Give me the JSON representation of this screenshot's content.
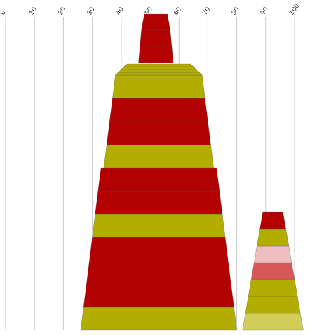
{
  "chart_data": {
    "type": "bar",
    "orientation": "horizontal",
    "style": "stacked trapezoid layers",
    "title": "",
    "xlabel": "",
    "ylabel": "",
    "xlim": [
      0,
      100
    ],
    "x_ticks": [
      0,
      10,
      20,
      30,
      40,
      50,
      60,
      70,
      80,
      90,
      100
    ],
    "tick_label_rotation": "diagonal",
    "grid": "vertical",
    "legend": "none",
    "colors": {
      "red": "#b30000",
      "olive": "#b3ad00",
      "light_olive": "#d2cc58",
      "pink": "#efbfbf",
      "salmon": "#d65858",
      "gridline": "#c8c8c8"
    },
    "shapes": [
      {
        "name": "large-stack",
        "layers": [
          {
            "bottom_start": 26,
            "bottom_end": 80,
            "top_start": 27,
            "top_end": 79,
            "color": "olive"
          },
          {
            "bottom_start": 27,
            "bottom_end": 79,
            "top_start": 28,
            "top_end": 78,
            "color": "red"
          },
          {
            "bottom_start": 28,
            "bottom_end": 78,
            "top_start": 29,
            "top_end": 77,
            "color": "red"
          },
          {
            "bottom_start": 29,
            "bottom_end": 77,
            "top_start": 30,
            "top_end": 76,
            "color": "red"
          },
          {
            "bottom_start": 30,
            "bottom_end": 76,
            "top_start": 31,
            "top_end": 75,
            "color": "olive"
          },
          {
            "bottom_start": 31,
            "bottom_end": 75,
            "top_start": 32,
            "top_end": 74,
            "color": "red"
          },
          {
            "bottom_start": 32,
            "bottom_end": 74,
            "top_start": 33,
            "top_end": 73,
            "color": "red"
          },
          {
            "bottom_start": 34,
            "bottom_end": 72,
            "top_start": 35,
            "top_end": 71,
            "color": "olive"
          },
          {
            "bottom_start": 35,
            "bottom_end": 71,
            "top_start": 36,
            "top_end": 70,
            "color": "red"
          },
          {
            "bottom_start": 36,
            "bottom_end": 70,
            "top_start": 37,
            "top_end": 69,
            "color": "red"
          },
          {
            "bottom_start": 37,
            "bottom_end": 69,
            "top_start": 38,
            "top_end": 68,
            "color": "olive"
          },
          {
            "bottom_start": 38,
            "bottom_end": 68,
            "top_start": 39,
            "top_end": 67,
            "color": "olive"
          },
          {
            "bottom_start": 39,
            "bottom_end": 67,
            "top_start": 40,
            "top_end": 66,
            "color": "olive"
          },
          {
            "bottom_start": 40,
            "bottom_end": 66,
            "top_start": 41,
            "top_end": 65,
            "color": "olive"
          },
          {
            "bottom_start": 41,
            "bottom_end": 65,
            "top_start": 42,
            "top_end": 64,
            "color": "olive"
          },
          {
            "bottom_start": 46,
            "bottom_end": 58,
            "top_start": 46.5,
            "top_end": 57.5,
            "color": "red"
          },
          {
            "bottom_start": 46.5,
            "bottom_end": 57.5,
            "top_start": 47,
            "top_end": 57,
            "color": "red"
          },
          {
            "bottom_start": 47,
            "bottom_end": 57,
            "top_start": 48,
            "top_end": 56,
            "color": "red"
          }
        ]
      },
      {
        "name": "small-stack",
        "layers": [
          {
            "bottom_start": 82,
            "bottom_end": 103,
            "top_start": 83,
            "top_end": 102,
            "color": "light_olive"
          },
          {
            "bottom_start": 83,
            "bottom_end": 102,
            "top_start": 84,
            "top_end": 101,
            "color": "olive"
          },
          {
            "bottom_start": 84,
            "bottom_end": 101,
            "top_start": 85,
            "top_end": 100,
            "color": "olive"
          },
          {
            "bottom_start": 85,
            "bottom_end": 100,
            "top_start": 86,
            "top_end": 99,
            "color": "salmon"
          },
          {
            "bottom_start": 86,
            "bottom_end": 99,
            "top_start": 87,
            "top_end": 98,
            "color": "pink"
          },
          {
            "bottom_start": 87,
            "bottom_end": 98,
            "top_start": 88,
            "top_end": 97,
            "color": "olive"
          },
          {
            "bottom_start": 88,
            "bottom_end": 97,
            "top_start": 89,
            "top_end": 96,
            "color": "red"
          }
        ]
      }
    ]
  }
}
